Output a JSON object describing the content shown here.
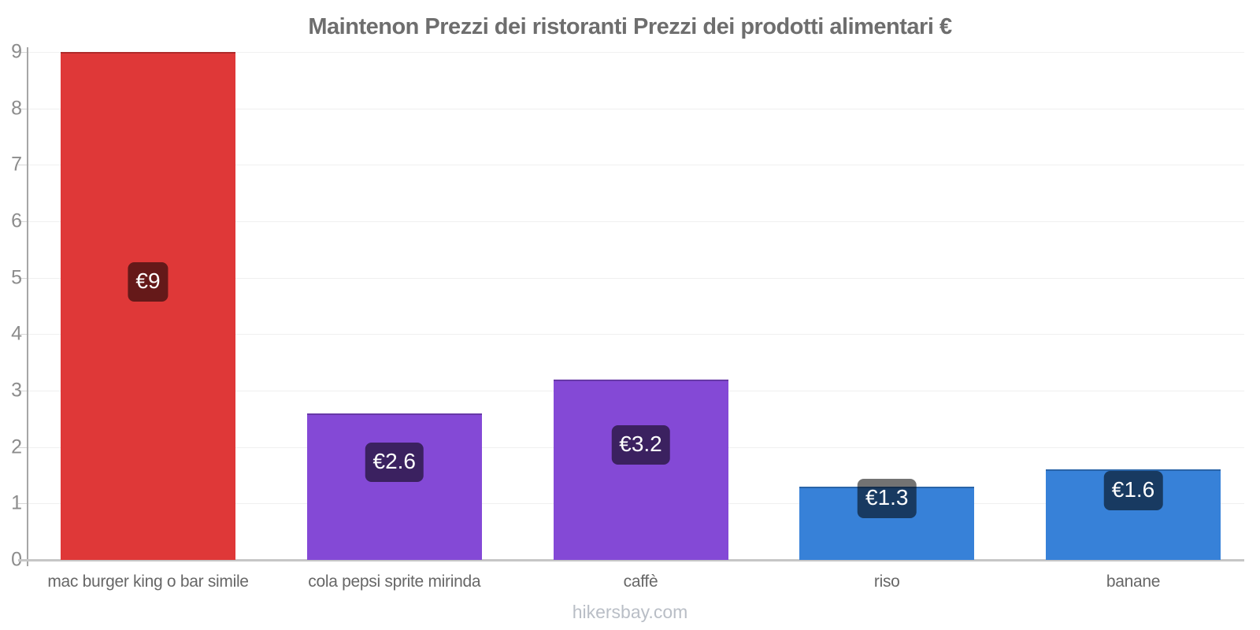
{
  "chart_data": {
    "type": "bar",
    "title": "Maintenon Prezzi dei ristoranti Prezzi dei prodotti alimentari €",
    "categories": [
      "mac burger king o bar simile",
      "cola pepsi sprite mirinda",
      "caffè",
      "riso",
      "banane"
    ],
    "values": [
      9,
      2.6,
      3.2,
      1.3,
      1.6
    ],
    "data_labels": [
      "€9",
      "€2.6",
      "€3.2",
      "€1.3",
      "€1.6"
    ],
    "bar_colors": [
      "#df3838",
      "#8449d6",
      "#8449d6",
      "#3781d8",
      "#3781d8"
    ],
    "badge_color": "rgba(0,0,0,0.55)",
    "ylabel": "",
    "xlabel": "",
    "ylim": [
      0,
      9
    ],
    "yticks": [
      0,
      1,
      2,
      3,
      4,
      5,
      6,
      7,
      8,
      9
    ],
    "grid": true,
    "legend_position": "none",
    "currency": "€"
  },
  "footer": {
    "text": "hikersbay.com"
  }
}
